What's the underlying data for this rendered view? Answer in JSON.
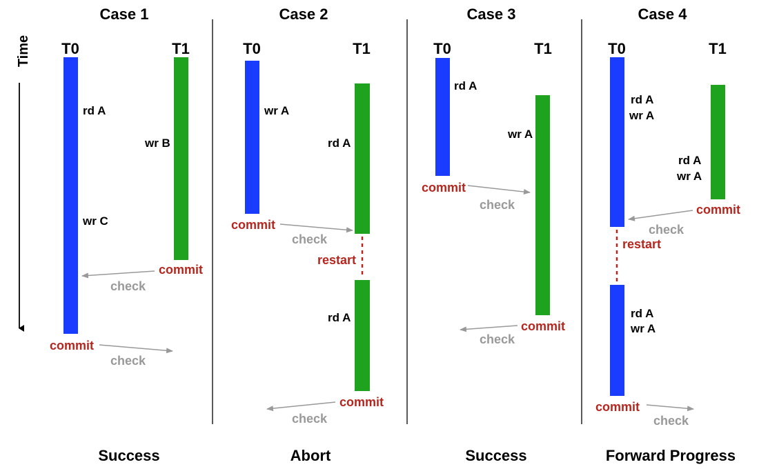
{
  "time_label": "Time",
  "colors": {
    "t0_bar": "#1a3cff",
    "t1_bar": "#1fa31f",
    "commit": "#b5261e",
    "check": "#999999"
  },
  "cases": [
    {
      "title": "Case 1",
      "t0_label": "T0",
      "t1_label": "T1",
      "result": "Success",
      "t0_ops": [
        "rd A",
        "wr C"
      ],
      "t1_ops": [
        "wr B"
      ],
      "commits": [
        "commit",
        "commit"
      ],
      "checks": [
        "check",
        "check"
      ]
    },
    {
      "title": "Case 2",
      "t0_label": "T0",
      "t1_label": "T1",
      "result": "Abort",
      "t0_ops": [
        "wr A"
      ],
      "t1_ops": [
        "rd A",
        "rd A"
      ],
      "commits": [
        "commit",
        "commit"
      ],
      "checks": [
        "check",
        "check"
      ],
      "restart": "restart"
    },
    {
      "title": "Case 3",
      "t0_label": "T0",
      "t1_label": "T1",
      "result": "Success",
      "t0_ops": [
        "rd A"
      ],
      "t1_ops": [
        "wr A"
      ],
      "commits": [
        "commit",
        "commit"
      ],
      "checks": [
        "check",
        "check"
      ]
    },
    {
      "title": "Case 4",
      "t0_label": "T0",
      "t1_label": "T1",
      "result": "Forward Progress",
      "t0_ops": [
        "rd A",
        "wr A",
        "rd A",
        "wr A"
      ],
      "t1_ops": [
        "rd A",
        "wr A"
      ],
      "commits": [
        "commit",
        "commit"
      ],
      "checks": [
        "check",
        "check"
      ],
      "restart": "restart"
    }
  ]
}
